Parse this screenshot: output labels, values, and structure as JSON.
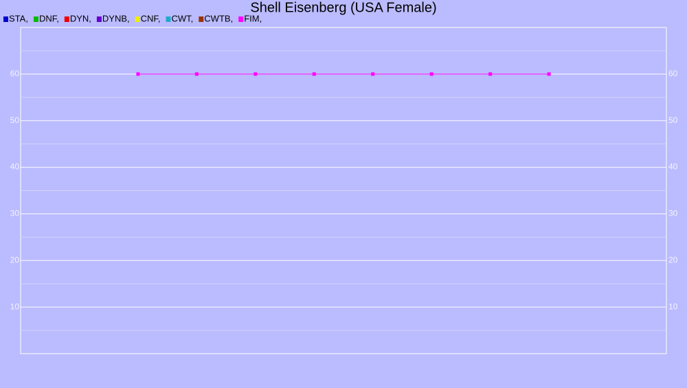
{
  "chart_data": {
    "type": "line",
    "title": "Shell Eisenberg (USA Female)",
    "categories": [
      null,
      null,
      null,
      null,
      null,
      null,
      null,
      null
    ],
    "series": [
      {
        "name": "STA,",
        "color": "#0000cc",
        "values": [
          null,
          null,
          null,
          null,
          null,
          null,
          null,
          null
        ]
      },
      {
        "name": "DNF,",
        "color": "#00bb00",
        "values": [
          null,
          null,
          null,
          null,
          null,
          null,
          null,
          null
        ]
      },
      {
        "name": "DYN,",
        "color": "#ee0000",
        "values": [
          null,
          null,
          null,
          null,
          null,
          null,
          null,
          null
        ]
      },
      {
        "name": "DYNB,",
        "color": "#6600cc",
        "values": [
          null,
          null,
          null,
          null,
          null,
          null,
          null,
          null
        ]
      },
      {
        "name": "CNF,",
        "color": "#eeee00",
        "values": [
          null,
          null,
          null,
          null,
          null,
          null,
          null,
          null
        ]
      },
      {
        "name": "CWT,",
        "color": "#22aacc",
        "values": [
          null,
          null,
          null,
          null,
          null,
          null,
          null,
          null
        ]
      },
      {
        "name": "CWTB,",
        "color": "#993300",
        "values": [
          null,
          null,
          null,
          null,
          null,
          null,
          null,
          null
        ]
      },
      {
        "name": "FIM,",
        "color": "#ff00ff",
        "values": [
          60,
          60,
          60,
          60,
          60,
          60,
          60,
          60
        ]
      }
    ],
    "ylim": [
      0,
      70
    ],
    "yticks": [
      10,
      20,
      30,
      40,
      50,
      60
    ],
    "minor_yticks": [
      5,
      15,
      25,
      35,
      45,
      55,
      65
    ],
    "grid": true,
    "legend": "top-left"
  }
}
